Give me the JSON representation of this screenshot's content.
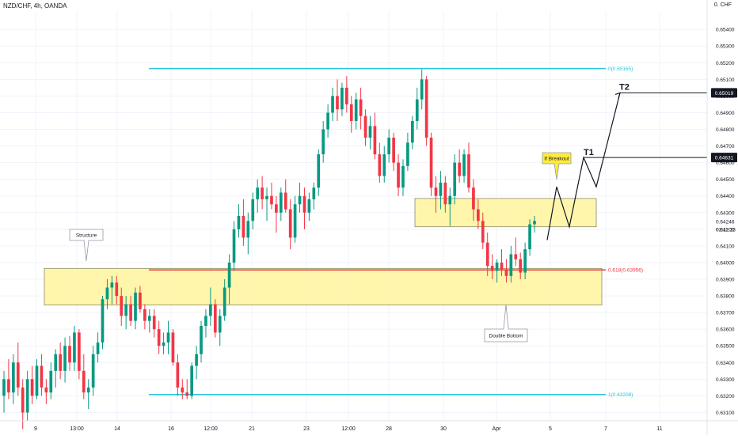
{
  "header": {
    "symbol": "NZD/CHF, 4h, OANDA",
    "currency_label": "0. CHF"
  },
  "colors": {
    "up": "#089981",
    "down": "#f23645",
    "zone_fill": "#fff59d",
    "zone_stroke": "#8a8a6a",
    "fib_line": "#26c6da",
    "fib_red": "#f23645",
    "grid": "#f0f3fa",
    "axis_text": "#131722"
  },
  "chart_data": {
    "type": "candlestick",
    "ylim": [
      0.6305,
      0.6551
    ],
    "y_ticks": [
      "0.63100",
      "0.63200",
      "0.63300",
      "0.63400",
      "0.63500",
      "0.63600",
      "0.63700",
      "0.63800",
      "0.63900",
      "0.64000",
      "0.64100",
      "0.64200",
      "0.64300",
      "0.64400",
      "0.64500",
      "0.64600",
      "0.64700",
      "0.64800",
      "0.64900",
      "0.65000",
      "0.65100",
      "0.65200",
      "0.65300",
      "0.65400"
    ],
    "x_ticks": [
      "9",
      "13:00",
      "14",
      "16",
      "12:00",
      "21",
      "23",
      "12:00",
      "28",
      "30",
      "Apr",
      "5",
      "7",
      "11"
    ],
    "fib_levels": [
      {
        "label": "0(0.65165)",
        "value": 0.65165,
        "color": "#26c6da"
      },
      {
        "label": "0.618(0.63956)",
        "value": 0.63956,
        "color": "#f23645"
      },
      {
        "label": "1(0.63208)",
        "value": 0.63208,
        "color": "#26c6da"
      }
    ],
    "zones": [
      {
        "name": "support-zone",
        "from": 0.63745,
        "to": 0.63965
      },
      {
        "name": "resistance-zone",
        "from": 0.64215,
        "to": 0.64385
      }
    ],
    "price_labels": [
      {
        "value": "0.65019",
        "price": 0.65019,
        "style": "dark"
      },
      {
        "value": "0.64631",
        "price": 0.64631,
        "style": "dark"
      },
      {
        "value": "0.64246",
        "price": 0.64246,
        "style": "plain"
      },
      {
        "value": "03:11:23",
        "price": 0.642,
        "style": "plain"
      }
    ],
    "annotations": {
      "structure": "Structure",
      "double_bottom": "Double Bottom",
      "if_breakout": "If Breakout",
      "t1": "T1",
      "t2": "T2"
    },
    "candles": [
      [
        0.632,
        0.6335,
        0.631,
        0.633
      ],
      [
        0.633,
        0.6342,
        0.6318,
        0.6322
      ],
      [
        0.6322,
        0.6345,
        0.6315,
        0.634
      ],
      [
        0.634,
        0.6352,
        0.632,
        0.6325
      ],
      [
        0.6325,
        0.633,
        0.63,
        0.631
      ],
      [
        0.631,
        0.6335,
        0.6305,
        0.633
      ],
      [
        0.633,
        0.6338,
        0.6315,
        0.632
      ],
      [
        0.632,
        0.6342,
        0.6318,
        0.6338
      ],
      [
        0.6338,
        0.6345,
        0.632,
        0.6325
      ],
      [
        0.6325,
        0.633,
        0.6315,
        0.6322
      ],
      [
        0.6322,
        0.634,
        0.6318,
        0.6335
      ],
      [
        0.6335,
        0.6348,
        0.6325,
        0.6345
      ],
      [
        0.6345,
        0.6352,
        0.633,
        0.6335
      ],
      [
        0.6335,
        0.6355,
        0.6328,
        0.635
      ],
      [
        0.635,
        0.6356,
        0.6335,
        0.634
      ],
      [
        0.634,
        0.6362,
        0.6335,
        0.6358
      ],
      [
        0.6358,
        0.636,
        0.633,
        0.6335
      ],
      [
        0.6335,
        0.6345,
        0.6318,
        0.6322
      ],
      [
        0.6322,
        0.633,
        0.6312,
        0.6325
      ],
      [
        0.6325,
        0.635,
        0.632,
        0.6345
      ],
      [
        0.6345,
        0.6358,
        0.634,
        0.6352
      ],
      [
        0.6352,
        0.638,
        0.6348,
        0.6378
      ],
      [
        0.6378,
        0.639,
        0.6372,
        0.6385
      ],
      [
        0.6385,
        0.6392,
        0.6375,
        0.6388
      ],
      [
        0.6388,
        0.6392,
        0.6375,
        0.638
      ],
      [
        0.638,
        0.6385,
        0.6362,
        0.6368
      ],
      [
        0.6368,
        0.638,
        0.636,
        0.6375
      ],
      [
        0.6375,
        0.638,
        0.6362,
        0.6365
      ],
      [
        0.6365,
        0.6385,
        0.636,
        0.6382
      ],
      [
        0.6382,
        0.6386,
        0.637,
        0.6372
      ],
      [
        0.6372,
        0.6375,
        0.636,
        0.6365
      ],
      [
        0.6365,
        0.6372,
        0.6358,
        0.6368
      ],
      [
        0.6368,
        0.6372,
        0.6355,
        0.636
      ],
      [
        0.636,
        0.6365,
        0.6345,
        0.635
      ],
      [
        0.635,
        0.6358,
        0.6345,
        0.6352
      ],
      [
        0.6352,
        0.6365,
        0.6345,
        0.6358
      ],
      [
        0.6358,
        0.636,
        0.6338,
        0.634
      ],
      [
        0.634,
        0.6345,
        0.632,
        0.6325
      ],
      [
        0.6325,
        0.633,
        0.6318,
        0.6322
      ],
      [
        0.6322,
        0.633,
        0.6318,
        0.632
      ],
      [
        0.632,
        0.634,
        0.6318,
        0.6338
      ],
      [
        0.6338,
        0.635,
        0.633,
        0.6345
      ],
      [
        0.6345,
        0.6365,
        0.634,
        0.6362
      ],
      [
        0.6362,
        0.6372,
        0.6355,
        0.6368
      ],
      [
        0.6368,
        0.6385,
        0.6362,
        0.6375
      ],
      [
        0.6375,
        0.6378,
        0.6355,
        0.6358
      ],
      [
        0.6358,
        0.6372,
        0.635,
        0.6368
      ],
      [
        0.6368,
        0.639,
        0.6365,
        0.6385
      ],
      [
        0.6385,
        0.6405,
        0.6375,
        0.64
      ],
      [
        0.64,
        0.6425,
        0.6395,
        0.642
      ],
      [
        0.642,
        0.6435,
        0.6415,
        0.6428
      ],
      [
        0.6428,
        0.6438,
        0.641,
        0.6415
      ],
      [
        0.6415,
        0.643,
        0.6405,
        0.6425
      ],
      [
        0.6425,
        0.6442,
        0.642,
        0.6438
      ],
      [
        0.6438,
        0.645,
        0.643,
        0.6445
      ],
      [
        0.6445,
        0.6452,
        0.6432,
        0.6438
      ],
      [
        0.6438,
        0.6445,
        0.6425,
        0.644
      ],
      [
        0.644,
        0.6448,
        0.6432,
        0.6435
      ],
      [
        0.6435,
        0.644,
        0.6418,
        0.643
      ],
      [
        0.643,
        0.6445,
        0.6425,
        0.6442
      ],
      [
        0.6442,
        0.645,
        0.643,
        0.6432
      ],
      [
        0.6432,
        0.6438,
        0.6408,
        0.6415
      ],
      [
        0.6415,
        0.644,
        0.6412,
        0.6435
      ],
      [
        0.6435,
        0.6448,
        0.643,
        0.644
      ],
      [
        0.644,
        0.6445,
        0.642,
        0.643
      ],
      [
        0.643,
        0.6442,
        0.6425,
        0.6438
      ],
      [
        0.6438,
        0.6448,
        0.6432,
        0.6445
      ],
      [
        0.6445,
        0.6468,
        0.644,
        0.6465
      ],
      [
        0.6465,
        0.6485,
        0.646,
        0.648
      ],
      [
        0.648,
        0.6495,
        0.6475,
        0.649
      ],
      [
        0.649,
        0.6505,
        0.6485,
        0.65
      ],
      [
        0.65,
        0.651,
        0.6485,
        0.6492
      ],
      [
        0.6492,
        0.6508,
        0.6488,
        0.6505
      ],
      [
        0.6505,
        0.6512,
        0.649,
        0.6495
      ],
      [
        0.6495,
        0.65,
        0.6478,
        0.6485
      ],
      [
        0.6485,
        0.6502,
        0.648,
        0.6498
      ],
      [
        0.6498,
        0.6505,
        0.648,
        0.6488
      ],
      [
        0.6488,
        0.6492,
        0.647,
        0.6475
      ],
      [
        0.6475,
        0.6488,
        0.6468,
        0.6482
      ],
      [
        0.6482,
        0.649,
        0.6462,
        0.6465
      ],
      [
        0.6465,
        0.6472,
        0.6448,
        0.6452
      ],
      [
        0.6452,
        0.647,
        0.6448,
        0.6465
      ],
      [
        0.6465,
        0.648,
        0.646,
        0.6475
      ],
      [
        0.6475,
        0.6478,
        0.6455,
        0.646
      ],
      [
        0.646,
        0.6465,
        0.644,
        0.6445
      ],
      [
        0.6445,
        0.6462,
        0.644,
        0.6458
      ],
      [
        0.6458,
        0.6478,
        0.6455,
        0.6472
      ],
      [
        0.6472,
        0.6488,
        0.6468,
        0.6485
      ],
      [
        0.6485,
        0.6505,
        0.648,
        0.6498
      ],
      [
        0.6498,
        0.6516,
        0.6492,
        0.651
      ],
      [
        0.651,
        0.6512,
        0.647,
        0.6475
      ],
      [
        0.6475,
        0.6478,
        0.644,
        0.6445
      ],
      [
        0.6445,
        0.6452,
        0.643,
        0.644
      ],
      [
        0.644,
        0.6455,
        0.6432,
        0.6448
      ],
      [
        0.6448,
        0.6452,
        0.643,
        0.6435
      ],
      [
        0.6435,
        0.6445,
        0.6422,
        0.644
      ],
      [
        0.644,
        0.6465,
        0.6435,
        0.646
      ],
      [
        0.646,
        0.6468,
        0.6448,
        0.6452
      ],
      [
        0.6452,
        0.6468,
        0.6448,
        0.6465
      ],
      [
        0.6465,
        0.6472,
        0.6442,
        0.6445
      ],
      [
        0.6445,
        0.645,
        0.6425,
        0.6432
      ],
      [
        0.6432,
        0.6438,
        0.642,
        0.6425
      ],
      [
        0.6425,
        0.643,
        0.6408,
        0.6412
      ],
      [
        0.6412,
        0.6418,
        0.6392,
        0.6398
      ],
      [
        0.6398,
        0.6405,
        0.639,
        0.6395
      ],
      [
        0.6395,
        0.6402,
        0.6388,
        0.64
      ],
      [
        0.64,
        0.6408,
        0.6392,
        0.6396
      ],
      [
        0.6396,
        0.6402,
        0.6388,
        0.6392
      ],
      [
        0.6392,
        0.641,
        0.6388,
        0.6405
      ],
      [
        0.6405,
        0.6415,
        0.6398,
        0.6402
      ],
      [
        0.6402,
        0.6406,
        0.639,
        0.6394
      ],
      [
        0.6394,
        0.6412,
        0.639,
        0.6408
      ],
      [
        0.6408,
        0.6426,
        0.6404,
        0.6423
      ],
      [
        0.6423,
        0.6428,
        0.6418,
        0.6425
      ]
    ]
  }
}
